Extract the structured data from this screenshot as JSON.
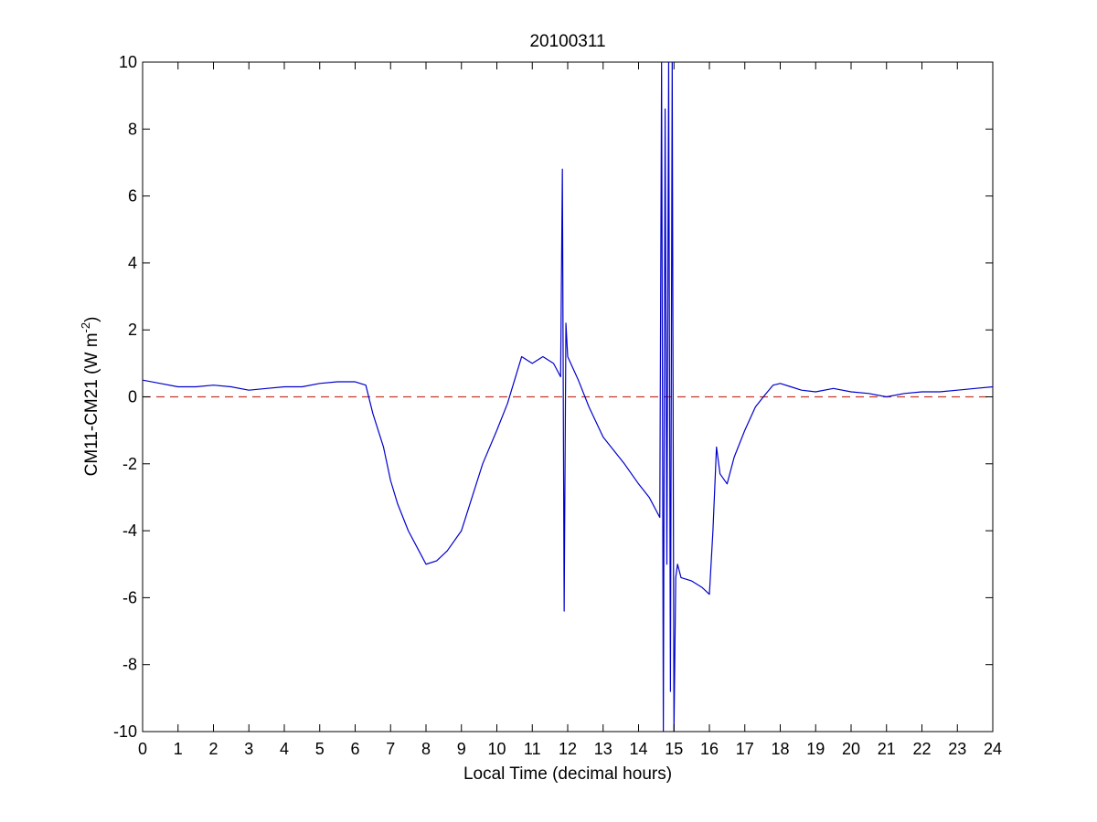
{
  "chart_data": {
    "type": "line",
    "title": "20100311",
    "xlabel": "Local Time (decimal hours)",
    "ylabel": {
      "base": "CM11-CM21 (W m",
      "superscript": "-2",
      "close": ")"
    },
    "xlim": [
      0,
      24
    ],
    "ylim": [
      -10,
      10
    ],
    "xticks": [
      0,
      1,
      2,
      3,
      4,
      5,
      6,
      7,
      8,
      9,
      10,
      11,
      12,
      13,
      14,
      15,
      16,
      17,
      18,
      19,
      20,
      21,
      22,
      23,
      24
    ],
    "yticks": [
      -10,
      -8,
      -6,
      -4,
      -2,
      0,
      2,
      4,
      6,
      8,
      10
    ],
    "grid": false,
    "legend": "none",
    "reference_line": {
      "y": 0,
      "style": "dashed",
      "color": "#c0392b"
    },
    "series": [
      {
        "color": "#0000cc",
        "x": [
          0,
          0.5,
          1,
          1.5,
          2,
          2.5,
          3,
          3.5,
          4,
          4.5,
          5,
          5.5,
          6,
          6.3,
          6.5,
          6.8,
          7,
          7.2,
          7.5,
          7.8,
          8,
          8.3,
          8.6,
          9,
          9.3,
          9.6,
          10,
          10.3,
          10.5,
          10.7,
          11,
          11.3,
          11.6,
          11.8,
          11.85,
          11.9,
          11.95,
          12,
          12.3,
          12.6,
          13,
          13.3,
          13.6,
          14,
          14.3,
          14.5,
          14.6,
          14.65,
          14.7,
          14.75,
          14.8,
          14.85,
          14.9,
          14.95,
          15,
          15.05,
          15.1,
          15.2,
          15.5,
          15.8,
          16,
          16.1,
          16.2,
          16.3,
          16.5,
          16.7,
          17,
          17.3,
          17.6,
          17.8,
          18,
          18.3,
          18.6,
          19,
          19.5,
          20,
          20.5,
          21,
          21.5,
          22,
          22.5,
          23,
          23.5,
          24
        ],
        "y": [
          0.5,
          0.4,
          0.3,
          0.3,
          0.35,
          0.3,
          0.2,
          0.25,
          0.3,
          0.3,
          0.4,
          0.45,
          0.45,
          0.35,
          -0.5,
          -1.5,
          -2.5,
          -3.2,
          -4.0,
          -4.6,
          -5.0,
          -4.9,
          -4.6,
          -4.0,
          -3.0,
          -2.0,
          -1.0,
          -0.2,
          0.5,
          1.2,
          1.0,
          1.2,
          1.0,
          0.6,
          6.8,
          -6.4,
          2.2,
          1.2,
          0.5,
          -0.3,
          -1.2,
          -1.6,
          -2.0,
          -2.6,
          -3.0,
          -3.4,
          -3.6,
          10,
          -10,
          8.6,
          -5.0,
          10,
          -8.8,
          10,
          -10,
          -5.4,
          -5.0,
          -5.4,
          -5.5,
          -5.7,
          -5.9,
          -4.0,
          -1.5,
          -2.3,
          -2.6,
          -1.8,
          -1.0,
          -0.3,
          0.1,
          0.35,
          0.4,
          0.3,
          0.2,
          0.15,
          0.25,
          0.15,
          0.1,
          0.0,
          0.1,
          0.15,
          0.15,
          0.2,
          0.25,
          0.3
        ]
      }
    ]
  }
}
